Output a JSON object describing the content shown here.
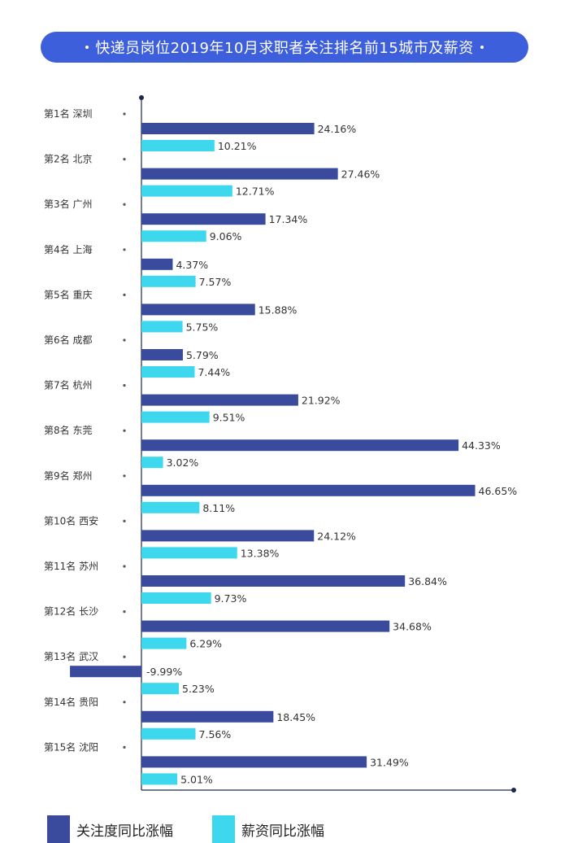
{
  "title": "快递员岗位2019年10月求职者关注排名前15城市及薪资",
  "colors": {
    "attention": "#3a4a9c",
    "salary": "#3ed8ee",
    "title_bg": "#3d5fdb",
    "axis": "#1c2a4a"
  },
  "legend": {
    "attention": "关注度同比涨幅",
    "salary": "薪资同比涨幅"
  },
  "chart_data": {
    "type": "bar",
    "orientation": "horizontal",
    "title": "快递员岗位2019年10月求职者关注排名前15城市及薪资",
    "categories": [
      "第1名 深圳",
      "第2名 北京",
      "第3名 广州",
      "第4名 上海",
      "第5名 重庆",
      "第6名 成都",
      "第7名 杭州",
      "第8名 东莞",
      "第9名 郑州",
      "第10名 西安",
      "第11名 苏州",
      "第12名 长沙",
      "第13名 武汉",
      "第14名 贵阳",
      "第15名 沈阳"
    ],
    "series": [
      {
        "name": "关注度同比涨幅",
        "values": [
          24.16,
          27.46,
          17.34,
          4.37,
          15.88,
          5.79,
          21.92,
          44.33,
          46.65,
          24.12,
          36.84,
          34.68,
          -9.99,
          18.45,
          31.49
        ],
        "labels": [
          "24.16%",
          "27.46%",
          "17.34%",
          "4.37%",
          "15.88%",
          "5.79%",
          "21.92%",
          "44.33%",
          "46.65%",
          "24.12%",
          "36.84%",
          "34.68%",
          "-9.99%",
          "18.45%",
          "31.49%"
        ]
      },
      {
        "name": "薪资同比涨幅",
        "values": [
          10.21,
          12.71,
          9.06,
          7.57,
          5.75,
          7.44,
          9.51,
          3.02,
          8.11,
          13.38,
          9.73,
          6.29,
          5.23,
          7.56,
          5.01
        ],
        "labels": [
          "10.21%",
          "12.71%",
          "9.06%",
          "7.57%",
          "5.75%",
          "7.44%",
          "9.51%",
          "3.02%",
          "8.11%",
          "13.38%",
          "9.73%",
          "6.29%",
          "5.23%",
          "7.56%",
          "5.01%"
        ]
      }
    ],
    "unit": "%",
    "legend_position": "bottom-left",
    "grid": false
  }
}
